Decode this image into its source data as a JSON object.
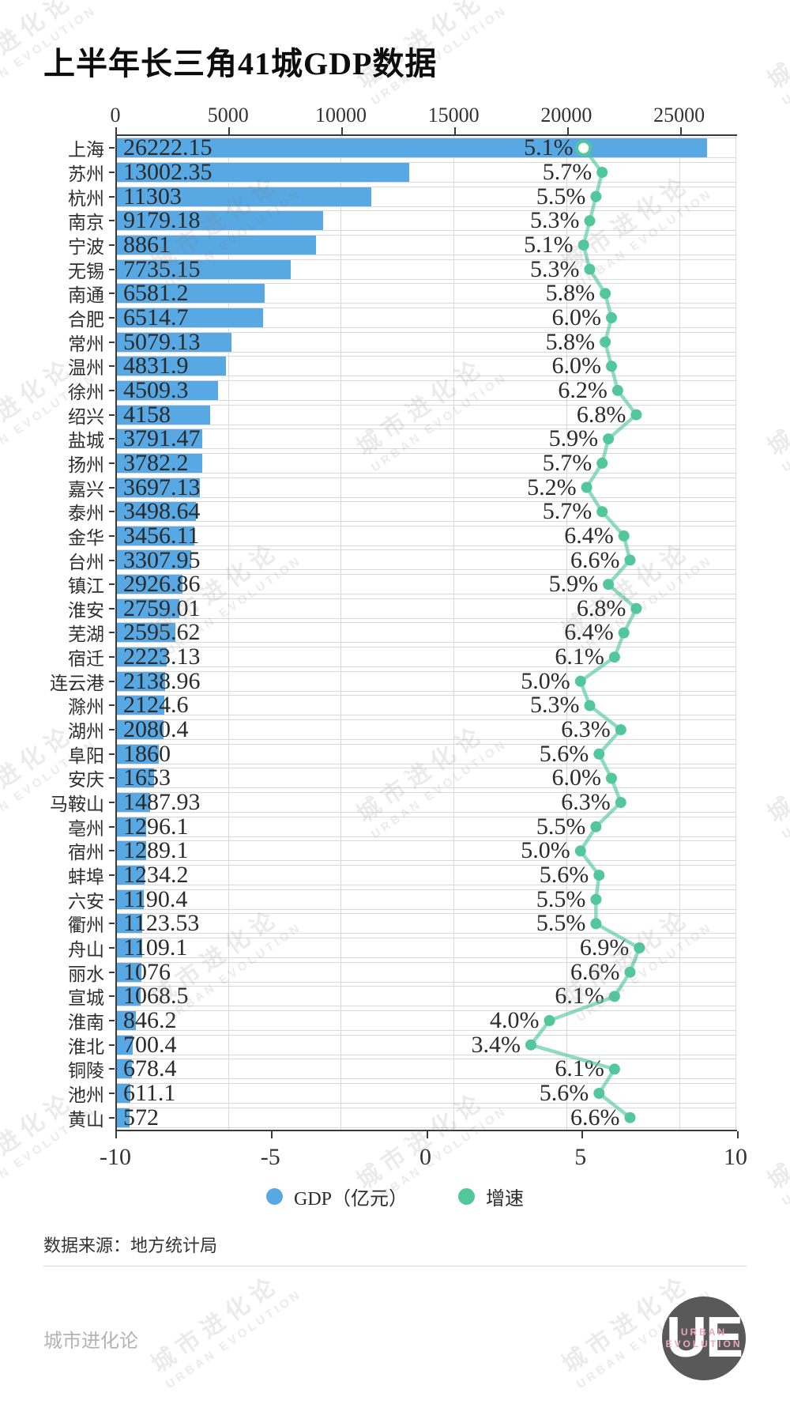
{
  "title": "上半年长三角41城GDP数据",
  "watermark": {
    "cn": "城市进化论",
    "en": "URBAN EVOLUTION"
  },
  "colors": {
    "bar": "#58a8e4",
    "growth": "#52c79c",
    "grid": "#d9d9d9",
    "axis": "#3a3a3a",
    "logo_bg": "#595959",
    "logo_sub": "#efa6bd"
  },
  "chart_data": {
    "type": "bar",
    "orientation": "horizontal",
    "title": "上半年长三角41城GDP数据",
    "categories": [
      "上海",
      "苏州",
      "杭州",
      "南京",
      "宁波",
      "无锡",
      "南通",
      "合肥",
      "常州",
      "温州",
      "徐州",
      "绍兴",
      "盐城",
      "扬州",
      "嘉兴",
      "泰州",
      "金华",
      "台州",
      "镇江",
      "淮安",
      "芜湖",
      "宿迁",
      "连云港",
      "滁州",
      "湖州",
      "阜阳",
      "安庆",
      "马鞍山",
      "亳州",
      "宿州",
      "蚌埠",
      "六安",
      "衢州",
      "舟山",
      "丽水",
      "宣城",
      "淮南",
      "淮北",
      "铜陵",
      "池州",
      "黄山"
    ],
    "series": [
      {
        "name": "GDP（亿元）",
        "type": "bar",
        "color": "#58a8e4",
        "axis": "top",
        "axis_ticks": [
          0,
          5000,
          10000,
          15000,
          20000,
          25000
        ],
        "axis_range": [
          0,
          27500
        ],
        "values": [
          26222.15,
          13002.35,
          11303,
          9179.18,
          8861,
          7735.15,
          6581.2,
          6514.7,
          5079.13,
          4831.9,
          4509.3,
          4158,
          3791.47,
          3782.2,
          3697.13,
          3498.64,
          3456.11,
          3307.95,
          2926.86,
          2759.01,
          2595.62,
          2223.13,
          2138.96,
          2124.6,
          2080.4,
          1860,
          1653,
          1487.93,
          1296.1,
          1289.1,
          1234.2,
          1190.4,
          1123.53,
          1109.1,
          1076,
          1068.5,
          846.2,
          700.4,
          678.4,
          611.1,
          572
        ],
        "value_labels": [
          "26222.15",
          "13002.35",
          "11303",
          "9179.18",
          "8861",
          "7735.15",
          "6581.2",
          "6514.7",
          "5079.13",
          "4831.9",
          "4509.3",
          "4158",
          "3791.47",
          "3782.2",
          "3697.13",
          "3498.64",
          "3456.11",
          "3307.95",
          "2926.86",
          "2759.01",
          "2595.62",
          "2223.13",
          "2138.96",
          "2124.6",
          "2080.4",
          "1860",
          "1653",
          "1487.93",
          "1296.1",
          "1289.1",
          "1234.2",
          "1190.4",
          "1123.53",
          "1109.1",
          "1076",
          "1068.5",
          "846.2",
          "700.4",
          "678.4",
          "611.1",
          "572"
        ]
      },
      {
        "name": "增速",
        "type": "line-markers",
        "color": "#52c79c",
        "axis": "bottom",
        "axis_ticks": [
          -10,
          -5,
          0,
          5,
          10
        ],
        "axis_range": [
          -10,
          10
        ],
        "unit": "%",
        "values": [
          5.1,
          5.7,
          5.5,
          5.3,
          5.1,
          5.3,
          5.8,
          6.0,
          5.8,
          6.0,
          6.2,
          6.8,
          5.9,
          5.7,
          5.2,
          5.7,
          6.4,
          6.6,
          5.9,
          6.8,
          6.4,
          6.1,
          5.0,
          5.3,
          6.3,
          5.6,
          6.0,
          6.3,
          5.5,
          5.0,
          5.6,
          5.5,
          5.5,
          6.9,
          6.6,
          6.1,
          4.0,
          3.4,
          6.1,
          5.6,
          6.6
        ],
        "value_labels": [
          "5.1%",
          "5.7%",
          "5.5%",
          "5.3%",
          "5.1%",
          "5.3%",
          "5.8%",
          "6.0%",
          "5.8%",
          "6.0%",
          "6.2%",
          "6.8%",
          "5.9%",
          "5.7%",
          "5.2%",
          "5.7%",
          "6.4%",
          "6.6%",
          "5.9%",
          "6.8%",
          "6.4%",
          "6.1%",
          "5.0%",
          "5.3%",
          "6.3%",
          "5.6%",
          "6.0%",
          "6.3%",
          "5.5%",
          "5.0%",
          "5.6%",
          "5.5%",
          "5.5%",
          "6.9%",
          "6.6%",
          "6.1%",
          "4.0%",
          "3.4%",
          "6.1%",
          "5.6%",
          "6.6%"
        ]
      }
    ],
    "top_axis_tick_labels": [
      "0",
      "5000",
      "10000",
      "15000",
      "20000",
      "25000"
    ],
    "bottom_axis_tick_labels": [
      "-10",
      "-5",
      "0",
      "5",
      "10"
    ],
    "grid": true,
    "legend_position": "bottom"
  },
  "legend": {
    "items": [
      {
        "label": "GDP（亿元）",
        "color": "#58a8e4"
      },
      {
        "label": "增速",
        "color": "#52c79c"
      }
    ]
  },
  "source": "数据来源：地方统计局",
  "footer": {
    "brand": "城市进化论",
    "logo_text": "UE",
    "logo_sub_line1": "URBAN",
    "logo_sub_line2": "EVOLUTION"
  }
}
